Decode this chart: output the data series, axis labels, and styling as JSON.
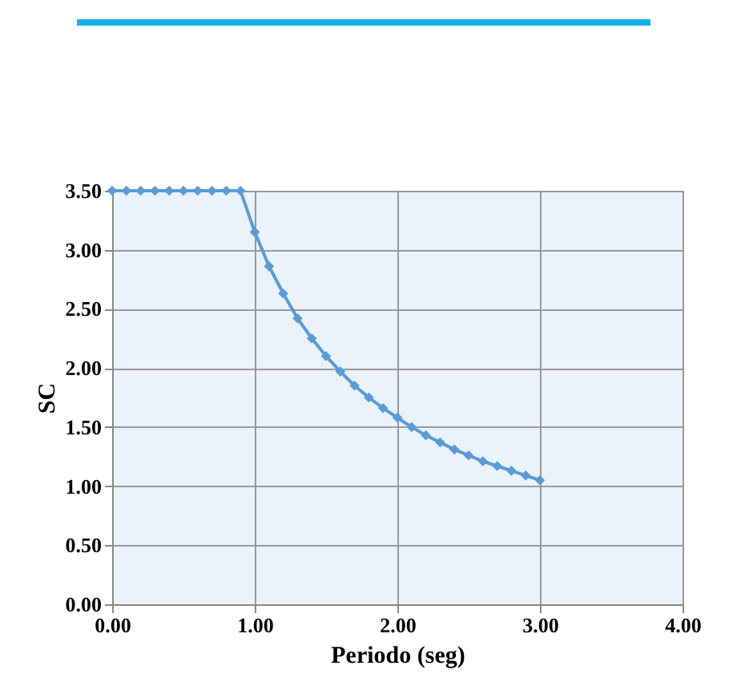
{
  "chart_data": {
    "type": "line",
    "xlabel": "Periodo (seg)",
    "ylabel": "SC",
    "x": [
      0,
      0.1,
      0.2,
      0.3,
      0.4,
      0.5,
      0.6,
      0.7,
      0.8,
      0.9,
      1.0,
      1.1,
      1.2,
      1.3,
      1.4,
      1.5,
      1.6,
      1.7,
      1.8,
      1.9,
      2.0,
      2.1,
      2.2,
      2.3,
      2.4,
      2.5,
      2.6,
      2.7,
      2.8,
      2.9,
      3.0
    ],
    "series": [
      {
        "color": "#5b9bd5",
        "values": [
          3.5,
          3.5,
          3.5,
          3.5,
          3.5,
          3.5,
          3.5,
          3.5,
          3.5,
          3.5,
          3.15,
          2.86,
          2.63,
          2.42,
          2.25,
          2.1,
          1.97,
          1.85,
          1.75,
          1.66,
          1.58,
          1.5,
          1.43,
          1.37,
          1.31,
          1.26,
          1.21,
          1.17,
          1.13,
          1.09,
          1.05
        ]
      }
    ],
    "xlim": [
      0,
      4
    ],
    "xticks": [
      {
        "value": 0,
        "label": "0.00"
      },
      {
        "value": 1,
        "label": "1.00"
      },
      {
        "value": 2,
        "label": "2.00"
      },
      {
        "value": 3,
        "label": "3.00"
      },
      {
        "value": 4,
        "label": "4.00"
      }
    ],
    "ylim": [
      0,
      3.5
    ],
    "yticks": [
      {
        "value": 0,
        "label": "0.00"
      },
      {
        "value": 0.5,
        "label": "0.50"
      },
      {
        "value": 1,
        "label": "1.00"
      },
      {
        "value": 1.5,
        "label": "1.50"
      },
      {
        "value": 2,
        "label": "2.00"
      },
      {
        "value": 2.5,
        "label": "2.50"
      },
      {
        "value": 3,
        "label": "3.00"
      },
      {
        "value": 3.5,
        "label": "3.50"
      }
    ],
    "grid": true,
    "marker": "diamond",
    "line_style": "solid"
  }
}
